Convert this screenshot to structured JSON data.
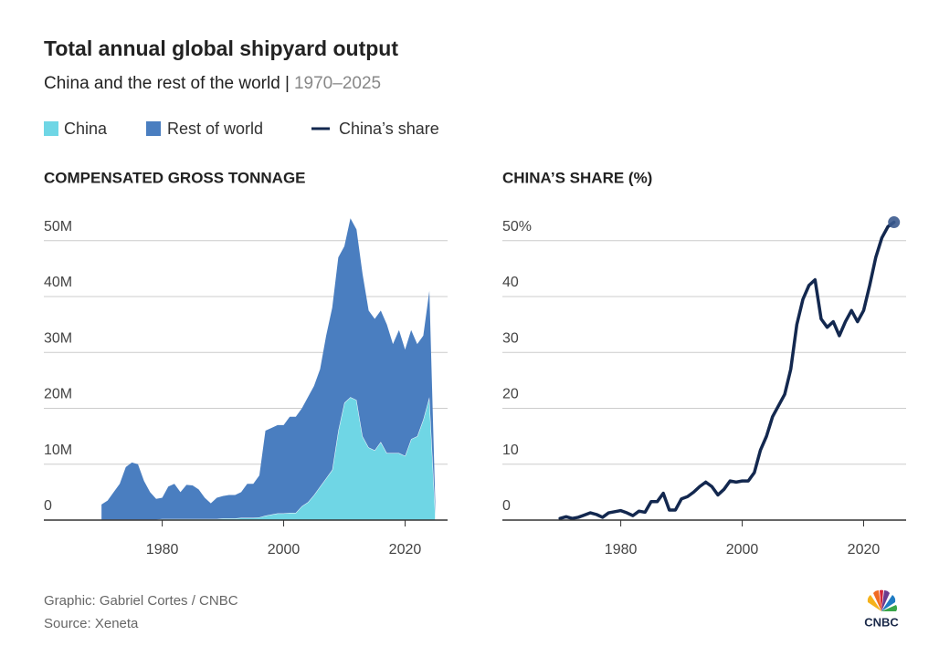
{
  "title": "Total annual global shipyard output",
  "subtitle": "China and the rest of the world |",
  "subtitle_years": "1970–2025",
  "credit": "Graphic: Gabriel Cortes / CNBC",
  "source": "Source: Xeneta",
  "logo": "CNBC",
  "chart_data": [
    {
      "type": "area",
      "stacked": true,
      "title": "COMPENSATED GROSS TONNAGE",
      "x": [
        1970,
        1971,
        1972,
        1973,
        1974,
        1975,
        1976,
        1977,
        1978,
        1979,
        1980,
        1981,
        1982,
        1983,
        1984,
        1985,
        1986,
        1987,
        1988,
        1989,
        1990,
        1991,
        1992,
        1993,
        1994,
        1995,
        1996,
        1997,
        1998,
        1999,
        2000,
        2001,
        2002,
        2003,
        2004,
        2005,
        2006,
        2007,
        2008,
        2009,
        2010,
        2011,
        2012,
        2013,
        2014,
        2015,
        2016,
        2017,
        2018,
        2019,
        2020,
        2021,
        2022,
        2023,
        2024,
        2025
      ],
      "series": [
        {
          "name": "China",
          "color": "#6fd6e5",
          "values": [
            100000,
            100000,
            100000,
            100000,
            100000,
            100000,
            100000,
            100000,
            100000,
            100000,
            200000,
            200000,
            200000,
            200000,
            200000,
            200000,
            200000,
            200000,
            200000,
            200000,
            300000,
            300000,
            300000,
            400000,
            400000,
            400000,
            500000,
            800000,
            1000000,
            1200000,
            1200000,
            1300000,
            1300000,
            2500000,
            3200000,
            4500000,
            6000000,
            7500000,
            9000000,
            16000000,
            21000000,
            22000000,
            21500000,
            15000000,
            13000000,
            12500000,
            14000000,
            12000000,
            12000000,
            12000000,
            11500000,
            14500000,
            15000000,
            18000000,
            22000000,
            1100000
          ]
        },
        {
          "name": "Rest of world",
          "color": "#4a7ec0",
          "values": [
            2700000,
            3400000,
            4900000,
            6400000,
            9400000,
            10200000,
            9900000,
            6900000,
            4900000,
            3700000,
            3800000,
            5800000,
            6300000,
            4800000,
            6100000,
            6000000,
            5300000,
            3800000,
            2800000,
            3800000,
            4000000,
            4200000,
            4200000,
            4600000,
            6100000,
            6100000,
            7500000,
            15200000,
            15500000,
            15800000,
            15800000,
            17200000,
            17200000,
            17500000,
            18800000,
            19500000,
            21000000,
            25500000,
            29000000,
            31000000,
            28000000,
            32000000,
            30500000,
            29000000,
            24500000,
            23500000,
            23500000,
            23000000,
            19500000,
            22000000,
            19000000,
            19500000,
            16500000,
            15000000,
            19000000,
            900000
          ]
        }
      ],
      "xlim": [
        1960.5,
        2027
      ],
      "xticks": [
        1980,
        2000,
        2020
      ],
      "ylim": [
        0,
        56000000
      ],
      "yticks": [
        0,
        {
          "value": 10000000,
          "label": "10M"
        },
        {
          "value": 20000000,
          "label": "20M"
        },
        {
          "value": 30000000,
          "label": "30M"
        },
        {
          "value": 40000000,
          "label": "40M"
        },
        {
          "value": 50000000,
          "label": "50M"
        }
      ],
      "grid": true
    },
    {
      "type": "line",
      "title": "CHINA’S SHARE (%)",
      "end_marker": true,
      "x": [
        1970,
        1971,
        1972,
        1973,
        1974,
        1975,
        1976,
        1977,
        1978,
        1979,
        1980,
        1981,
        1982,
        1983,
        1984,
        1985,
        1986,
        1987,
        1988,
        1989,
        1990,
        1991,
        1992,
        1993,
        1994,
        1995,
        1996,
        1997,
        1998,
        1999,
        2000,
        2001,
        2002,
        2003,
        2004,
        2005,
        2006,
        2007,
        2008,
        2009,
        2010,
        2011,
        2012,
        2013,
        2014,
        2015,
        2016,
        2017,
        2018,
        2019,
        2020,
        2021,
        2022,
        2023,
        2024,
        2025
      ],
      "series": [
        {
          "name": "China’s share",
          "color": "#13284f",
          "values": [
            0.3,
            0.6,
            0.3,
            0.5,
            0.9,
            1.3,
            1.0,
            0.5,
            1.3,
            1.5,
            1.7,
            1.3,
            0.8,
            1.6,
            1.4,
            3.3,
            3.3,
            4.8,
            1.8,
            1.8,
            3.8,
            4.2,
            5,
            6,
            6.8,
            6,
            4.5,
            5.5,
            7,
            6.8,
            7,
            7,
            8.5,
            12.5,
            15,
            18.5,
            20.5,
            22.5,
            27,
            35,
            39.5,
            42,
            43,
            36,
            34.5,
            35.5,
            33,
            35.5,
            37.5,
            35.5,
            37.5,
            42,
            47,
            50.5,
            52.5,
            53.3
          ]
        }
      ],
      "xlim": [
        1960.5,
        2027
      ],
      "xticks": [
        1980,
        2000,
        2020
      ],
      "ylim": [
        0,
        56
      ],
      "yticks": [
        0,
        10,
        20,
        30,
        40,
        {
          "value": 50,
          "label": "50%"
        }
      ],
      "grid": true
    }
  ]
}
